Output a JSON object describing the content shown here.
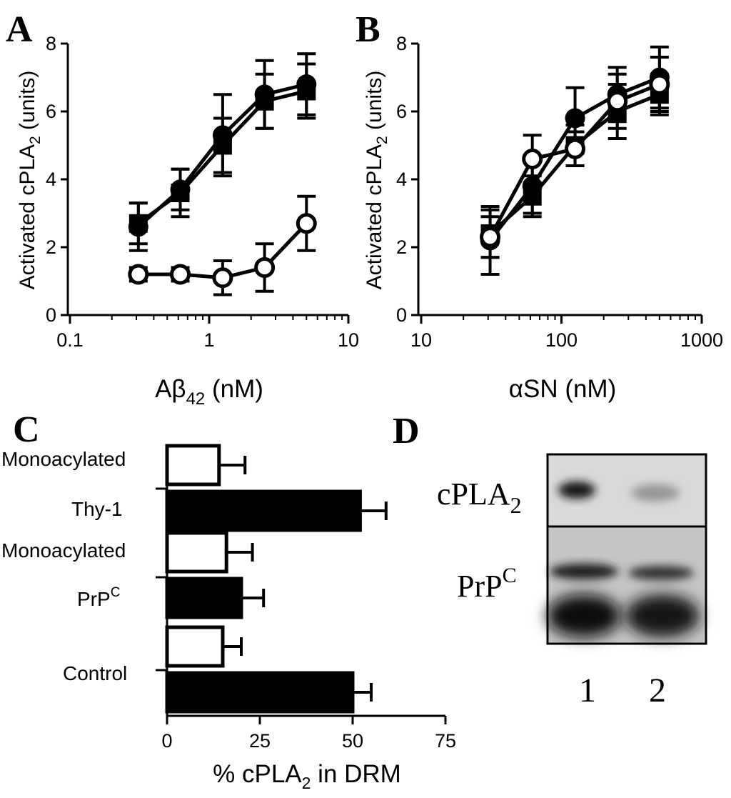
{
  "panels": {
    "A": "A",
    "B": "B",
    "C": "C",
    "D": "D"
  },
  "chart_data": [
    {
      "panel": "A",
      "type": "line",
      "xscale": "log",
      "xlim": [
        0.1,
        10
      ],
      "ylim": [
        0,
        8
      ],
      "xticks": [
        "0.1",
        "1",
        "10"
      ],
      "yticks": [
        "0",
        "2",
        "4",
        "6",
        "8"
      ],
      "ylabel": "Activated cPLA",
      "ylabel_sub": "2",
      "ylabel_suffix": " (units)",
      "xlabel": "Aβ",
      "xlabel_sub": "42",
      "xlabel_suffix": " (nM)",
      "x": [
        0.31,
        0.62,
        1.25,
        2.5,
        5
      ],
      "series": [
        {
          "marker": "circle-filled",
          "values": [
            2.6,
            3.7,
            5.3,
            6.5,
            6.8
          ],
          "err": [
            0.7,
            0.6,
            1.2,
            1.0,
            0.9
          ]
        },
        {
          "marker": "square-filled",
          "values": [
            2.7,
            3.6,
            5.0,
            6.3,
            6.6
          ],
          "err": [
            0.6,
            0.7,
            0.8,
            0.8,
            0.8
          ]
        },
        {
          "marker": "circle-open",
          "values": [
            1.2,
            1.2,
            1.1,
            1.4,
            2.7
          ],
          "err": [
            0.2,
            0.2,
            0.5,
            0.7,
            0.8
          ]
        }
      ]
    },
    {
      "panel": "B",
      "type": "line",
      "xscale": "log",
      "xlim": [
        10,
        1000
      ],
      "ylim": [
        0,
        8
      ],
      "xticks": [
        "10",
        "100",
        "1000"
      ],
      "yticks": [
        "0",
        "2",
        "4",
        "6",
        "8"
      ],
      "ylabel": "Activated cPLA",
      "ylabel_sub": "2",
      "ylabel_suffix": " (units)",
      "xlabel": "αSN (nM)",
      "x": [
        31,
        62,
        125,
        250,
        500
      ],
      "series": [
        {
          "marker": "circle-filled",
          "values": [
            2.2,
            3.8,
            5.8,
            6.5,
            7.0
          ],
          "err": [
            1.0,
            0.8,
            0.9,
            0.8,
            0.9
          ]
        },
        {
          "marker": "square-filled",
          "values": [
            2.4,
            3.5,
            5.0,
            6.0,
            6.5
          ],
          "err": [
            0.7,
            0.6,
            0.6,
            0.8,
            0.6
          ]
        },
        {
          "marker": "circle-open",
          "values": [
            2.3,
            4.6,
            4.9,
            6.3,
            6.8
          ],
          "err": [
            0.6,
            0.7,
            0.5,
            0.8,
            0.8
          ]
        }
      ]
    },
    {
      "panel": "C",
      "type": "bar",
      "orientation": "horizontal",
      "xlim": [
        0,
        75
      ],
      "xticks": [
        "0",
        "25",
        "50",
        "75"
      ],
      "xlabel": "% cPLA",
      "xlabel_sub": "2",
      "xlabel_suffix": " in DRM",
      "categories": [
        {
          "line1": "Monoacylated",
          "line2": "Thy-1",
          "line2_sup": ""
        },
        {
          "line1": "Monoacylated",
          "line2": "PrP",
          "line2_sup": "C"
        },
        {
          "line1": "Control",
          "line2": "",
          "line2_sup": ""
        }
      ],
      "series": [
        {
          "fill": "open",
          "values": [
            14,
            16,
            15
          ],
          "err": [
            7,
            7,
            5
          ]
        },
        {
          "fill": "filled",
          "values": [
            52,
            20,
            50
          ],
          "err": [
            7,
            6,
            5
          ]
        }
      ]
    }
  ],
  "blot": {
    "panel": "D",
    "rows": [
      {
        "label": "cPLA",
        "sub": "2",
        "sup": ""
      },
      {
        "label": "PrP",
        "sub": "",
        "sup": "C"
      }
    ],
    "lanes": [
      "1",
      "2"
    ],
    "band_intensity": {
      "cPLA2": [
        0.9,
        0.25
      ],
      "PrPC": [
        0.85,
        0.75
      ]
    }
  }
}
